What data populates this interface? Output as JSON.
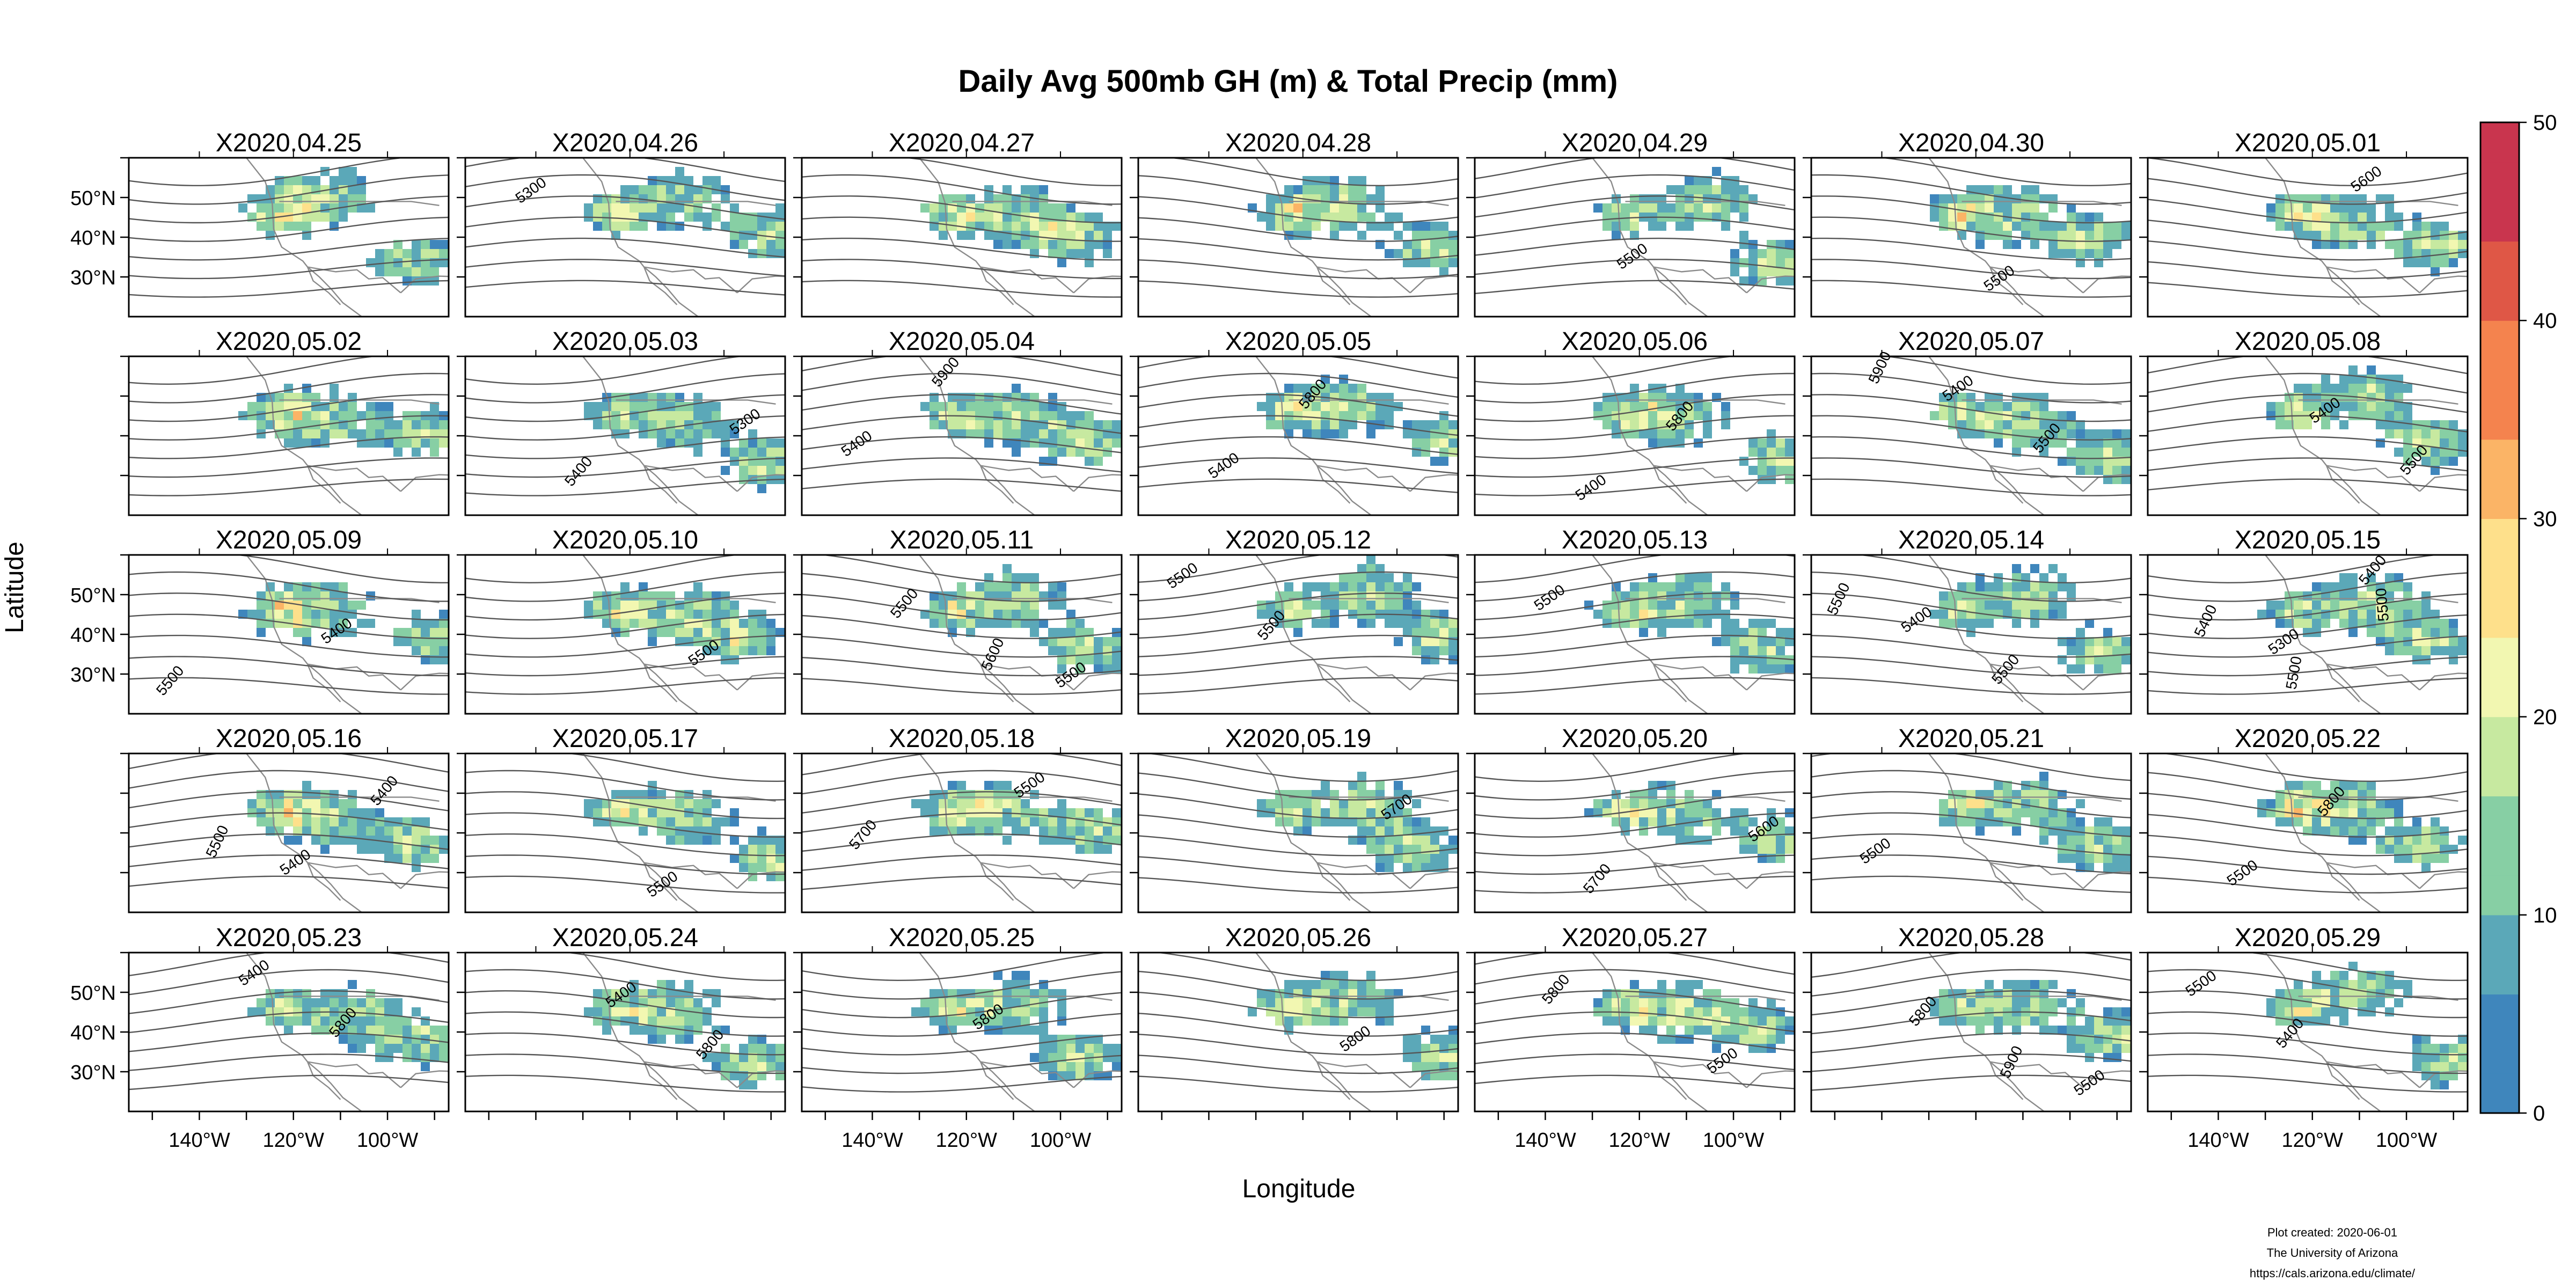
{
  "chart_data": {
    "type": "heatmap",
    "title": "Daily Avg 500mb GH (m) & Total Precip (mm)",
    "xlabel": "Longitude",
    "ylabel": "Latitude",
    "layout": {
      "columns": 7,
      "rows": 5
    },
    "x_tick_labels": [
      "140°W",
      "120°W",
      "100°W"
    ],
    "y_tick_labels": [
      "50°N",
      "40°N",
      "30°N"
    ],
    "xlim": [
      -155,
      -87
    ],
    "ylim": [
      20,
      60
    ],
    "colorbar": {
      "range": [
        0,
        50
      ],
      "ticks": [
        0,
        10,
        20,
        30,
        40,
        50
      ],
      "position": "right",
      "palette": [
        "#3f86bc",
        "#5ba8b8",
        "#87cfa4",
        "#c7e9a0",
        "#f2f7b1",
        "#fee08b",
        "#fbb466",
        "#f4834e",
        "#df5746",
        "#c9354e"
      ]
    },
    "panels": [
      {
        "label": "X2020.04.25",
        "contour_labels": []
      },
      {
        "label": "X2020.04.26",
        "contour_labels": [
          "5300"
        ]
      },
      {
        "label": "X2020.04.27",
        "contour_labels": []
      },
      {
        "label": "X2020.04.28",
        "contour_labels": []
      },
      {
        "label": "X2020.04.29",
        "contour_labels": [
          "5500"
        ]
      },
      {
        "label": "X2020.04.30",
        "contour_labels": [
          "5500"
        ]
      },
      {
        "label": "X2020.05.01",
        "contour_labels": [
          "5600"
        ]
      },
      {
        "label": "X2020.05.02",
        "contour_labels": []
      },
      {
        "label": "X2020.05.03",
        "contour_labels": [
          "5300",
          "5400"
        ]
      },
      {
        "label": "X2020.05.04",
        "contour_labels": [
          "5400",
          "5900"
        ]
      },
      {
        "label": "X2020.05.05",
        "contour_labels": [
          "5400",
          "5800"
        ]
      },
      {
        "label": "X2020.05.06",
        "contour_labels": [
          "5400",
          "5800"
        ]
      },
      {
        "label": "X2020.05.07",
        "contour_labels": [
          "5400",
          "5500",
          "5900"
        ]
      },
      {
        "label": "X2020.05.08",
        "contour_labels": [
          "5400",
          "5500"
        ]
      },
      {
        "label": "X2020.05.09",
        "contour_labels": [
          "5400",
          "5500"
        ]
      },
      {
        "label": "X2020.05.10",
        "contour_labels": [
          "5500"
        ]
      },
      {
        "label": "X2020.05.11",
        "contour_labels": [
          "5500",
          "5500",
          "5600"
        ]
      },
      {
        "label": "X2020.05.12",
        "contour_labels": [
          "5500",
          "5500"
        ]
      },
      {
        "label": "X2020.05.13",
        "contour_labels": [
          "5500"
        ]
      },
      {
        "label": "X2020.05.14",
        "contour_labels": [
          "5400",
          "5500",
          "5500"
        ]
      },
      {
        "label": "X2020.05.15",
        "contour_labels": [
          "5300",
          "5400",
          "5400",
          "5500",
          "5500"
        ]
      },
      {
        "label": "X2020.05.16",
        "contour_labels": [
          "5400",
          "5400",
          "5500"
        ]
      },
      {
        "label": "X2020.05.17",
        "contour_labels": [
          "5500"
        ]
      },
      {
        "label": "X2020.05.18",
        "contour_labels": [
          "5500",
          "5700"
        ]
      },
      {
        "label": "X2020.05.19",
        "contour_labels": [
          "5700"
        ]
      },
      {
        "label": "X2020.05.20",
        "contour_labels": [
          "5600",
          "5700"
        ]
      },
      {
        "label": "X2020.05.21",
        "contour_labels": [
          "5500"
        ]
      },
      {
        "label": "X2020.05.22",
        "contour_labels": [
          "5500",
          "5800"
        ]
      },
      {
        "label": "X2020.05.23",
        "contour_labels": [
          "5400",
          "5800"
        ]
      },
      {
        "label": "X2020.05.24",
        "contour_labels": [
          "5400",
          "5800"
        ]
      },
      {
        "label": "X2020.05.25",
        "contour_labels": [
          "5800"
        ]
      },
      {
        "label": "X2020.05.26",
        "contour_labels": [
          "5800"
        ]
      },
      {
        "label": "X2020.05.27",
        "contour_labels": [
          "5500",
          "5800"
        ]
      },
      {
        "label": "X2020.05.28",
        "contour_labels": [
          "5500",
          "5800",
          "5900"
        ]
      },
      {
        "label": "X2020.05.29",
        "contour_labels": [
          "5500",
          "5400"
        ]
      }
    ]
  },
  "footer": {
    "line1": "Plot created: 2020-06-01",
    "line2": "The University of Arizona",
    "line3": "https://cals.arizona.edu/climate/"
  }
}
